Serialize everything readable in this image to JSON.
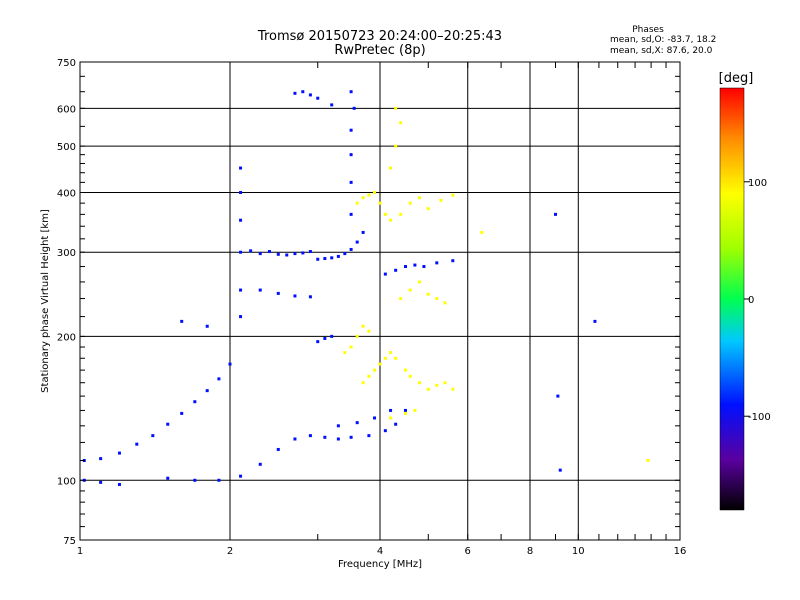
{
  "chart_data": {
    "type": "scatter",
    "title": "Tromsø 20150723 20:24:00–20:25:43",
    "subtitle": "RwPretec (8p)",
    "xlabel": "Frequency [MHz]",
    "ylabel": "Stationary phase Virtual Height [km]",
    "x_scale": "log",
    "y_scale": "log",
    "xlim": [
      1,
      16
    ],
    "ylim": [
      75,
      750
    ],
    "x_ticks": [
      1,
      2,
      4,
      6,
      8,
      10,
      16
    ],
    "x_tick_labels": [
      "1",
      "2",
      "4",
      "6",
      "8",
      "10",
      "16"
    ],
    "y_ticks": [
      75,
      100,
      200,
      300,
      400,
      500,
      600,
      750
    ],
    "y_tick_labels": [
      "75",
      "100",
      "200",
      "300",
      "400",
      "500",
      "600",
      "750"
    ],
    "grid": true,
    "stats": {
      "heading": "Phases",
      "line_o": "mean, sd,O: -83.7, 18.2",
      "line_x": "mean, sd,X:  87.6, 20.0"
    },
    "colorbar": {
      "label": "[deg]",
      "range": [
        -180,
        180
      ],
      "ticks": [
        100,
        0,
        -100
      ],
      "tick_labels": [
        "100",
        "0",
        "-100"
      ],
      "colormap": "rainbow"
    },
    "series": [
      {
        "mode": "O",
        "phase_deg": -90,
        "points": [
          [
            1.02,
            110
          ],
          [
            1.1,
            111
          ],
          [
            1.2,
            114
          ],
          [
            1.3,
            119
          ],
          [
            1.4,
            124
          ],
          [
            1.5,
            131
          ],
          [
            1.6,
            138
          ],
          [
            1.7,
            146
          ],
          [
            1.8,
            154
          ],
          [
            1.9,
            163
          ],
          [
            2.0,
            175
          ],
          [
            1.02,
            100
          ],
          [
            1.1,
            99
          ],
          [
            1.2,
            98
          ],
          [
            1.5,
            101
          ],
          [
            1.7,
            100
          ],
          [
            1.9,
            100
          ],
          [
            2.1,
            102
          ],
          [
            2.3,
            108
          ],
          [
            2.5,
            116
          ],
          [
            2.7,
            122
          ],
          [
            2.9,
            124
          ],
          [
            3.1,
            123
          ],
          [
            3.3,
            122
          ],
          [
            3.5,
            123
          ],
          [
            3.8,
            124
          ],
          [
            4.1,
            127
          ],
          [
            4.3,
            131
          ],
          [
            4.5,
            140
          ],
          [
            2.1,
            300
          ],
          [
            2.2,
            302
          ],
          [
            2.3,
            298
          ],
          [
            2.4,
            301
          ],
          [
            2.5,
            297
          ],
          [
            2.6,
            296
          ],
          [
            2.7,
            298
          ],
          [
            2.8,
            299
          ],
          [
            2.9,
            301
          ],
          [
            3.0,
            290
          ],
          [
            3.1,
            291
          ],
          [
            3.2,
            292
          ],
          [
            3.3,
            294
          ],
          [
            3.4,
            298
          ],
          [
            3.5,
            304
          ],
          [
            3.6,
            315
          ],
          [
            3.7,
            330
          ],
          [
            3.5,
            360
          ],
          [
            3.5,
            420
          ],
          [
            3.5,
            480
          ],
          [
            3.5,
            540
          ],
          [
            3.55,
            600
          ],
          [
            3.5,
            650
          ],
          [
            2.7,
            645
          ],
          [
            2.8,
            650
          ],
          [
            2.9,
            640
          ],
          [
            3.0,
            630
          ],
          [
            3.2,
            610
          ],
          [
            4.1,
            270
          ],
          [
            4.3,
            275
          ],
          [
            4.5,
            280
          ],
          [
            4.7,
            282
          ],
          [
            4.9,
            280
          ],
          [
            5.2,
            285
          ],
          [
            5.6,
            288
          ],
          [
            2.3,
            250
          ],
          [
            2.5,
            246
          ],
          [
            2.7,
            243
          ],
          [
            2.9,
            242
          ],
          [
            3.0,
            195
          ],
          [
            3.1,
            198
          ],
          [
            3.2,
            200
          ],
          [
            2.1,
            400
          ],
          [
            2.1,
            450
          ],
          [
            2.1,
            350
          ],
          [
            2.1,
            250
          ],
          [
            2.1,
            220
          ],
          [
            1.6,
            215
          ],
          [
            1.8,
            210
          ],
          [
            9.2,
            105
          ],
          [
            9.1,
            150
          ],
          [
            9.0,
            360
          ],
          [
            10.8,
            215
          ],
          [
            3.3,
            130
          ],
          [
            3.6,
            132
          ],
          [
            3.9,
            135
          ],
          [
            4.2,
            140
          ]
        ]
      },
      {
        "mode": "X",
        "phase_deg": 90,
        "points": [
          [
            3.6,
            380
          ],
          [
            3.7,
            390
          ],
          [
            3.8,
            395
          ],
          [
            3.9,
            400
          ],
          [
            4.0,
            380
          ],
          [
            4.1,
            360
          ],
          [
            4.2,
            350
          ],
          [
            4.4,
            360
          ],
          [
            4.6,
            380
          ],
          [
            4.8,
            390
          ],
          [
            5.0,
            370
          ],
          [
            5.3,
            385
          ],
          [
            5.6,
            395
          ],
          [
            3.7,
            160
          ],
          [
            3.8,
            165
          ],
          [
            3.9,
            170
          ],
          [
            4.0,
            175
          ],
          [
            4.1,
            180
          ],
          [
            4.2,
            185
          ],
          [
            4.3,
            180
          ],
          [
            4.5,
            170
          ],
          [
            4.6,
            165
          ],
          [
            4.8,
            160
          ],
          [
            5.0,
            155
          ],
          [
            5.2,
            158
          ],
          [
            5.4,
            160
          ],
          [
            5.6,
            155
          ],
          [
            3.4,
            185
          ],
          [
            3.5,
            190
          ],
          [
            3.6,
            200
          ],
          [
            3.7,
            210
          ],
          [
            3.8,
            205
          ],
          [
            4.2,
            450
          ],
          [
            4.3,
            500
          ],
          [
            4.4,
            560
          ],
          [
            4.3,
            600
          ],
          [
            4.4,
            240
          ],
          [
            4.6,
            250
          ],
          [
            4.8,
            260
          ],
          [
            5.0,
            245
          ],
          [
            5.2,
            240
          ],
          [
            5.4,
            235
          ],
          [
            6.4,
            330
          ],
          [
            13.8,
            110
          ],
          [
            4.2,
            135
          ],
          [
            4.5,
            138
          ],
          [
            4.7,
            140
          ]
        ]
      }
    ]
  }
}
